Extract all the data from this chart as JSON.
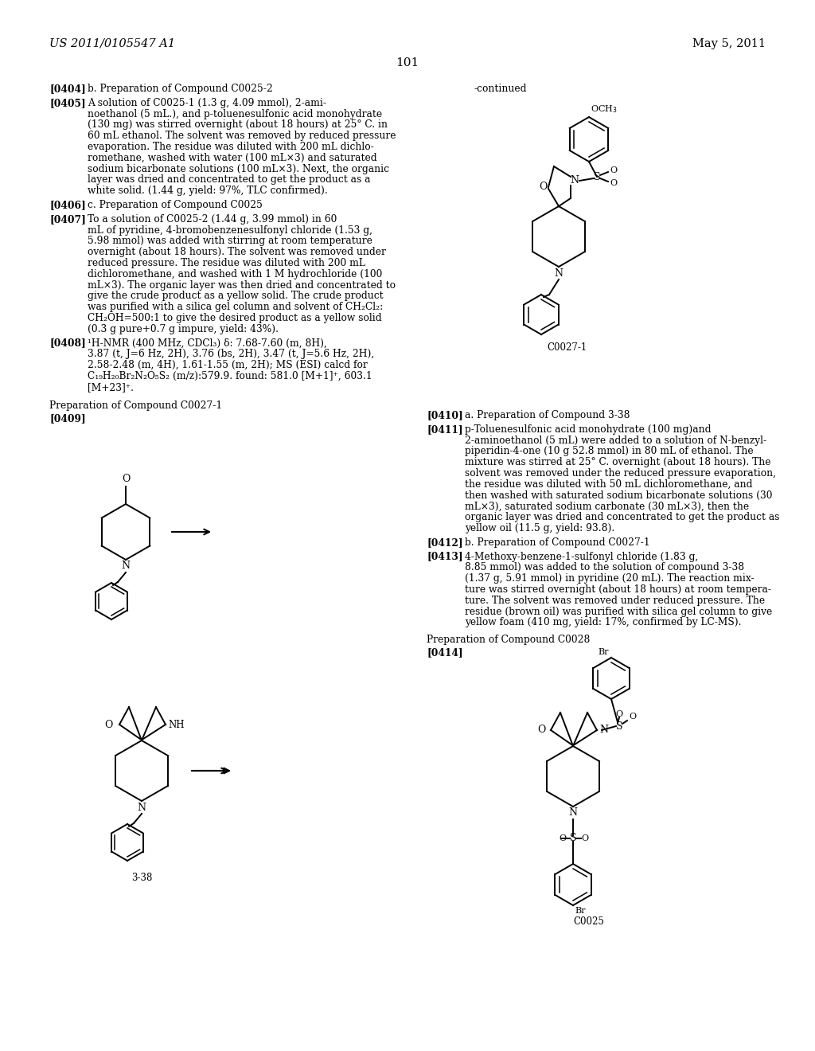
{
  "page_number": "101",
  "header_left": "US 2011/0105547 A1",
  "header_right": "May 5, 2011",
  "background_color": "#ffffff"
}
